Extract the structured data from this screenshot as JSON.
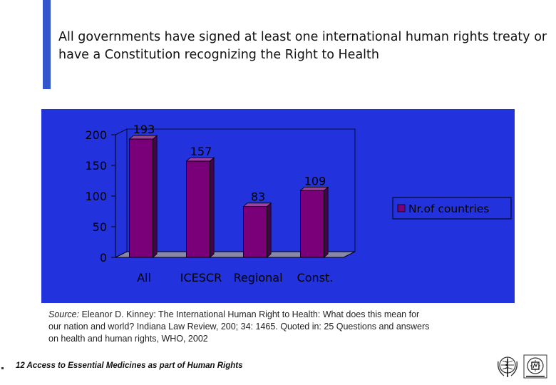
{
  "slide": {
    "title": "All governments have signed at least one international human rights treaty or have a Constitution recognizing the Right to Health",
    "source_label": "Source:",
    "source_text": " Eleanor D. Kinney: The International Human Right to Health: What does this mean for our nation and world? Indiana Law Review, 200; 34: 1465. Quoted in: 25 Questions and answers on health and human rights, WHO, 2002",
    "footer": "12 Access to Essential Medicines as part of Human Rights"
  },
  "colors": {
    "panel": "#2233dd",
    "bar_front": "#7a007a",
    "bar_side": "#4a004a",
    "bar_top": "#a040a0",
    "wall": "#2233dd",
    "floor": "#8888aa",
    "text": "#000000",
    "accent": "#3355cc"
  },
  "logos": [
    "who-emblem-icon",
    "essential-medicines-logo-icon"
  ],
  "chart_data": {
    "type": "bar",
    "categories": [
      "All",
      "ICESCR",
      "Regional",
      "Const."
    ],
    "series": [
      {
        "name": "Nr.of countries",
        "values": [
          193,
          157,
          83,
          109
        ]
      }
    ],
    "data_labels": [
      "193",
      "157",
      "83",
      "109"
    ],
    "y_ticks": [
      0,
      50,
      100,
      150,
      200
    ],
    "ylim": [
      0,
      200
    ],
    "grid": false,
    "legend_position": "right",
    "three_d": true
  }
}
